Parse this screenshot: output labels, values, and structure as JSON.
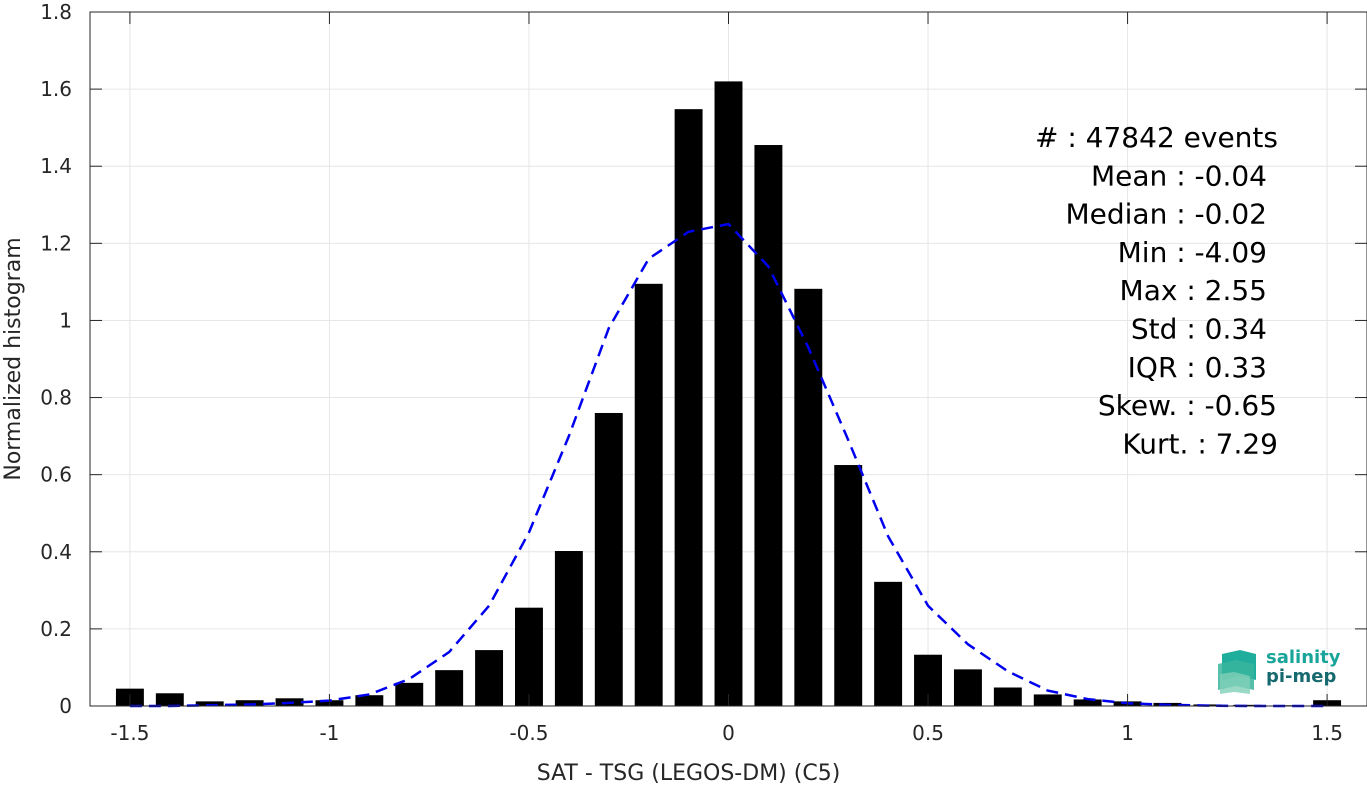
{
  "chart_data": {
    "type": "bar",
    "xlabel": "SAT - TSG (LEGOS-DM) (C5)",
    "ylabel": "Normalized histogram",
    "xlim": [
      -1.6,
      1.6
    ],
    "ylim": [
      0,
      1.8
    ],
    "grid": true,
    "xticks": [
      -1.5,
      -1,
      -0.5,
      0,
      0.5,
      1,
      1.5
    ],
    "xtick_labels": [
      "-1.5",
      "-1",
      "-0.5",
      "0",
      "0.5",
      "1",
      "1.5"
    ],
    "yticks": [
      0,
      0.2,
      0.4,
      0.6,
      0.8,
      1,
      1.2,
      1.4,
      1.6,
      1.8
    ],
    "ytick_labels": [
      "0",
      "0.2",
      "0.4",
      "0.6",
      "0.8",
      "1",
      "1.2",
      "1.4",
      "1.6",
      "1.8"
    ],
    "bin_width": 0.1,
    "x": [
      -1.5,
      -1.4,
      -1.3,
      -1.2,
      -1.1,
      -1.0,
      -0.9,
      -0.8,
      -0.7,
      -0.6,
      -0.5,
      -0.4,
      -0.3,
      -0.2,
      -0.1,
      0.0,
      0.1,
      0.2,
      0.3,
      0.4,
      0.5,
      0.6,
      0.7,
      0.8,
      0.9,
      1.0,
      1.1,
      1.2,
      1.3,
      1.4,
      1.5
    ],
    "values": [
      0.045,
      0.033,
      0.012,
      0.015,
      0.02,
      0.015,
      0.028,
      0.06,
      0.093,
      0.145,
      0.255,
      0.402,
      0.76,
      1.095,
      1.548,
      1.62,
      1.455,
      1.082,
      0.625,
      0.322,
      0.133,
      0.095,
      0.048,
      0.03,
      0.017,
      0.012,
      0.008,
      0.004,
      0.003,
      0.002,
      0.015
    ],
    "series": [
      {
        "style": "dashed",
        "color": "#0000ee",
        "x": [
          -1.5,
          -1.4,
          -1.3,
          -1.2,
          -1.1,
          -1.0,
          -0.9,
          -0.8,
          -0.7,
          -0.6,
          -0.5,
          -0.4,
          -0.3,
          -0.2,
          -0.1,
          0.0,
          0.1,
          0.2,
          0.3,
          0.4,
          0.5,
          0.6,
          0.7,
          0.8,
          0.9,
          1.0,
          1.1,
          1.2,
          1.3,
          1.4,
          1.5
        ],
        "values": [
          0.0,
          0.0,
          0.002,
          0.004,
          0.008,
          0.014,
          0.03,
          0.07,
          0.14,
          0.26,
          0.45,
          0.7,
          0.98,
          1.16,
          1.23,
          1.25,
          1.14,
          0.93,
          0.69,
          0.44,
          0.26,
          0.16,
          0.09,
          0.04,
          0.018,
          0.007,
          0.003,
          0.001,
          0.0,
          0.0,
          0.0
        ]
      }
    ],
    "bar_color": "#000000",
    "annotations": [
      "#  : 47842 events",
      "Mean : -0.04",
      "Median : -0.02",
      "Min : -4.09",
      "Max : 2.55",
      "Std : 0.34",
      "IQR : 0.33",
      "Skew. : -0.65",
      "Kurt. : 7.29"
    ],
    "annotation_placement": "top-right"
  },
  "logo": {
    "line1": "salinity",
    "line2": "pi-mep"
  }
}
